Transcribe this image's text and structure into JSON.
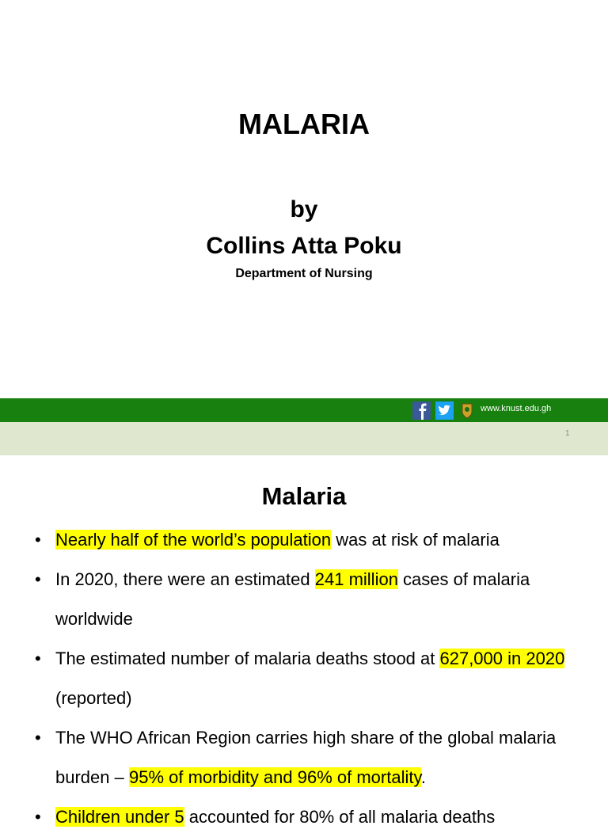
{
  "slides": [
    {
      "title": "MALARIA",
      "by": "by",
      "author": "Collins Atta Poku",
      "department": "Department of Nursing",
      "website": "www.knust.edu.gh",
      "page_number": "1"
    },
    {
      "title": "Malaria",
      "bullets": [
        [
          {
            "text": "Nearly half of the world’s population",
            "highlight": true
          },
          {
            "text": " was at risk of malaria",
            "highlight": false
          }
        ],
        [
          {
            "text": "In 2020, there were an estimated ",
            "highlight": false
          },
          {
            "text": "241 million",
            "highlight": true
          },
          {
            "text": " cases of malaria worldwide",
            "highlight": false
          }
        ],
        [
          {
            "text": "The estimated number of malaria deaths stood at ",
            "highlight": false
          },
          {
            "text": "627,000 in 2020",
            "highlight": true
          },
          {
            "text": " (reported)",
            "highlight": false
          }
        ],
        [
          {
            "text": "The WHO African Region carries high share of the global malaria burden – ",
            "highlight": false
          },
          {
            "text": "95% of morbidity and 96% of mortality",
            "highlight": true
          },
          {
            "text": ".",
            "highlight": false
          }
        ],
        [
          {
            "text": "Children under 5",
            "highlight": true
          },
          {
            "text": " accounted for 80% of all malaria deaths",
            "highlight": false
          }
        ]
      ]
    }
  ]
}
